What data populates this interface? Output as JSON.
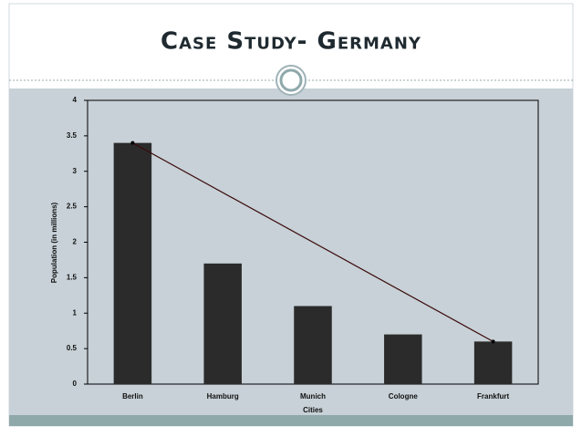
{
  "title": "Case Study- Germany",
  "chart_data": {
    "type": "bar",
    "categories": [
      "Berlin",
      "Hamburg",
      "Munich",
      "Cologne",
      "Frankfurt"
    ],
    "values": [
      3.4,
      1.7,
      1.1,
      0.7,
      0.6
    ],
    "color": "#2b2b2b",
    "ylim": [
      0,
      4
    ],
    "yticks": [
      0,
      0.5,
      1,
      1.5,
      2,
      2.5,
      3,
      3.5,
      4
    ],
    "xlabel": "Cities",
    "ylabel": "Population (in millions)",
    "grid": false
  }
}
